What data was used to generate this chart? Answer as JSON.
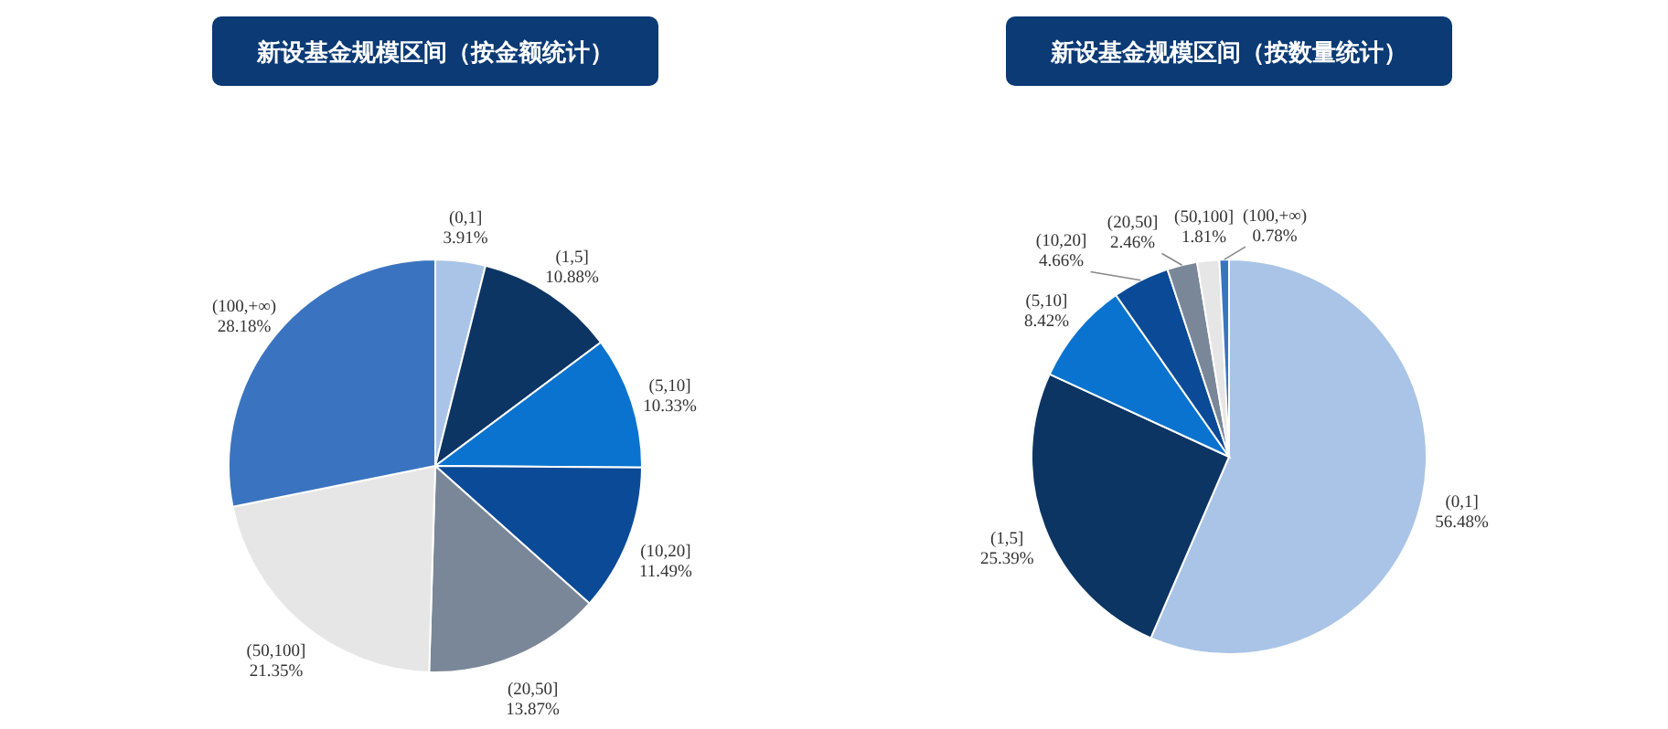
{
  "chart_data": [
    {
      "type": "pie",
      "title": "新设基金规模区间（按金额统计）",
      "categories": [
        "(0,1]",
        "(1,5]",
        "(5,10]",
        "(10,20]",
        "(20,50]",
        "(50,100]",
        "(100,+∞)"
      ],
      "values": [
        3.91,
        10.88,
        10.33,
        11.49,
        13.87,
        21.35,
        28.18
      ],
      "colors": [
        "#a9c4e6",
        "#0d3563",
        "#0a73cf",
        "#0b4a96",
        "#7a8799",
        "#e6e6e6",
        "#3a74c0"
      ],
      "value_labels": [
        "3.91%",
        "10.88%",
        "10.33%",
        "11.49%",
        "13.87%",
        "21.35%",
        "28.18%"
      ]
    },
    {
      "type": "pie",
      "title": "新设基金规模区间（按数量统计）",
      "categories": [
        "(0,1]",
        "(1,5]",
        "(5,10]",
        "(10,20]",
        "(20,50]",
        "(50,100]",
        "(100,+∞)"
      ],
      "values": [
        56.48,
        25.39,
        8.42,
        4.66,
        2.46,
        1.81,
        0.78
      ],
      "colors": [
        "#a9c4e6",
        "#0d3563",
        "#0a73cf",
        "#0b4a96",
        "#7a8799",
        "#e6e6e6",
        "#3a74c0"
      ],
      "value_labels": [
        "56.48%",
        "25.39%",
        "8.42%",
        "4.66%",
        "2.46%",
        "1.81%",
        "0.78%"
      ]
    }
  ]
}
